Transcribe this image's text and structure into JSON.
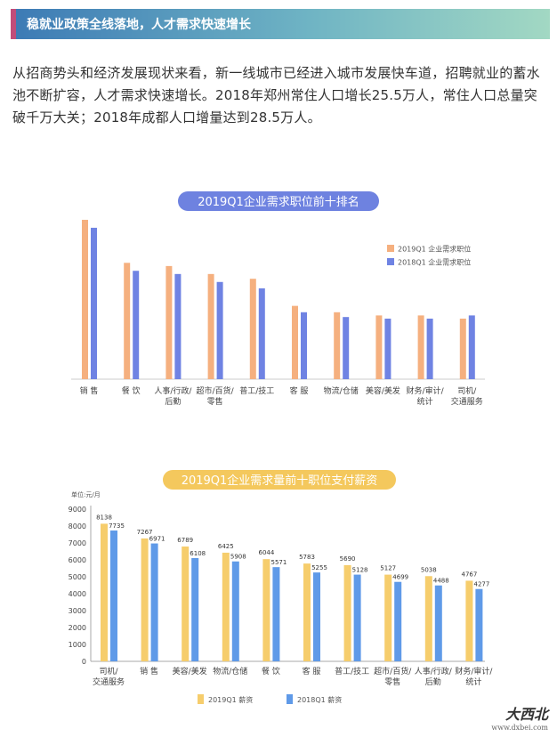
{
  "banner": {
    "title": "稳就业政策全线落地，人才需求快速增长"
  },
  "paragraph": "从招商势头和经济发展现状来看，新一线城市已经进入城市发展快车道，招聘就业的蓄水池不断扩容，人才需求快速增长。2018年郑州常住人口增长25.5万人，常住人口总量突破千万大关；2018年成都人口增量达到28.5万人。",
  "watermark": {
    "text": "大西北",
    "site": "www.dxbei.com"
  },
  "colors": {
    "orange": "#f5b07f",
    "blue": "#6f83e3",
    "yellow": "#f6cd6c",
    "blue2": "#5f9ae8",
    "pill1": "#6e82e0",
    "pill2": "#f4c85d"
  },
  "chart_data": [
    {
      "type": "bar",
      "title": "2019Q1企业需求职位前十排名",
      "categories": [
        "销 售",
        "餐 饮",
        "人事/行政/后勤",
        "超市/百货/零售",
        "普工/技工",
        "客 服",
        "物流/仓储",
        "美容/美发",
        "财务/审计/统计",
        "司机/交通服务"
      ],
      "categories_lines": [
        [
          "销 售"
        ],
        [
          "餐 饮"
        ],
        [
          "人事/行政/",
          "后勤"
        ],
        [
          "超市/百货/",
          "零售"
        ],
        [
          "普工/技工"
        ],
        [
          "客 服"
        ],
        [
          "物流/仓储"
        ],
        [
          "美容/美发"
        ],
        [
          "财务/审计/",
          "统计"
        ],
        [
          "司机/",
          "交通服务"
        ]
      ],
      "series": [
        {
          "name": "2019Q1 企业需求职位",
          "values": [
            100,
            73,
            71,
            66,
            63,
            46,
            42,
            40,
            40,
            38
          ]
        },
        {
          "name": "2018Q1 企业需求职位",
          "values": [
            95,
            68,
            66,
            61,
            57,
            42,
            39,
            38,
            38,
            40
          ]
        }
      ],
      "ylim": [
        0,
        105
      ],
      "legend": "top-right"
    },
    {
      "type": "bar",
      "title": "2019Q1企业需求量前十职位支付薪资",
      "ylabel": "单位:元/月",
      "categories": [
        "司机/交通服务",
        "销 售",
        "美容/美发",
        "物流/仓储",
        "餐 饮",
        "客 服",
        "普工/技工",
        "超市/百货/零售",
        "人事/行政/后勤",
        "财务/审计/统计"
      ],
      "categories_lines": [
        [
          "司机/",
          "交通服务"
        ],
        [
          "销 售"
        ],
        [
          "美容/美发"
        ],
        [
          "物流/仓储"
        ],
        [
          "餐 饮"
        ],
        [
          "客 服"
        ],
        [
          "普工/技工"
        ],
        [
          "超市/百货/",
          "零售"
        ],
        [
          "人事/行政/",
          "后勤"
        ],
        [
          "财务/审计/",
          "统计"
        ]
      ],
      "series": [
        {
          "name": "2019Q1 薪资",
          "values": [
            8138,
            7267,
            6789,
            6425,
            6044,
            5783,
            5690,
            5127,
            5038,
            4767
          ]
        },
        {
          "name": "2018Q1 薪资",
          "values": [
            7735,
            6971,
            6108,
            5908,
            5571,
            5255,
            5128,
            4699,
            4488,
            4277
          ]
        }
      ],
      "yticks": [
        0,
        1000,
        2000,
        3000,
        4000,
        5000,
        6000,
        7000,
        8000,
        9000
      ],
      "ylim": [
        0,
        9000
      ],
      "legend": "bottom"
    }
  ]
}
